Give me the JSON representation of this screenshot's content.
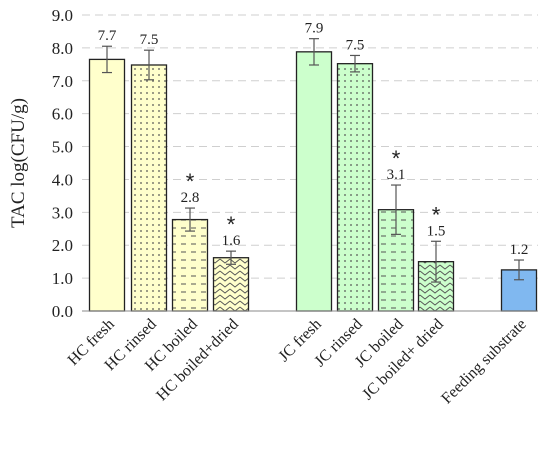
{
  "chart_data": {
    "type": "bar",
    "ylabel": "TAC log(CFU/g)",
    "xlabel": "",
    "ylim": [
      0,
      9
    ],
    "yticks": [
      "0.0",
      "1.0",
      "2.0",
      "3.0",
      "4.0",
      "5.0",
      "6.0",
      "7.0",
      "8.0",
      "9.0"
    ],
    "grid": "horizontal dashed",
    "categories": [
      "HC fresh",
      "HC rinsed",
      "HC boiled",
      "HC boiled+dried",
      "JC fresh",
      "JC rinsed",
      "JC boiled",
      "JC boiled+ dried",
      "Feeding substrate"
    ],
    "values": [
      7.65,
      7.48,
      2.78,
      1.62,
      7.88,
      7.52,
      3.08,
      1.5,
      1.25
    ],
    "data_labels": [
      "7.7",
      "7.5",
      "2.8",
      "1.6",
      "7.9",
      "7.5",
      "3.1",
      "1.5",
      "1.2"
    ],
    "error": [
      0.4,
      0.45,
      0.35,
      0.2,
      0.4,
      0.25,
      0.75,
      0.62,
      0.3
    ],
    "significance": [
      "",
      "",
      "*",
      "*",
      "",
      "",
      "*",
      "*",
      ""
    ],
    "colors": [
      "#ffffcc",
      "#ffffcc",
      "#ffffcc",
      "#ffffcc",
      "#ccffcc",
      "#ccffcc",
      "#ccffcc",
      "#ccffcc",
      "#80b8f0"
    ],
    "patterns": [
      "solid",
      "dots",
      "dashes",
      "zigzag",
      "solid",
      "dots",
      "dashes",
      "zigzag",
      "solid"
    ]
  }
}
